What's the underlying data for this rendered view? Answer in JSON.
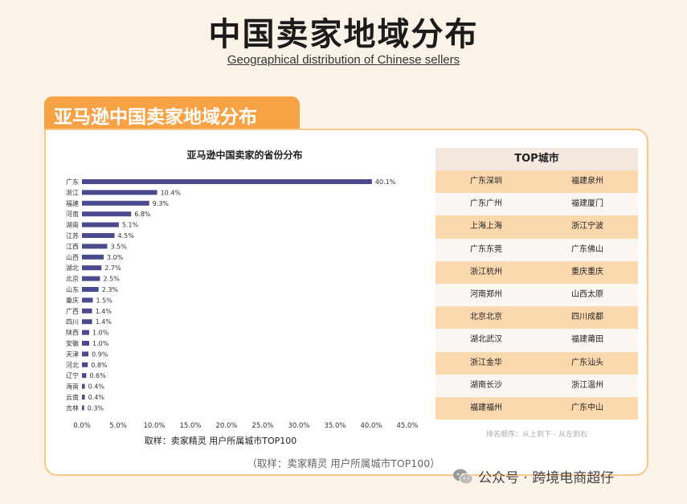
{
  "header": {
    "title": "中国卖家地域分布",
    "subtitle": "Geographical distribution of Chinese sellers"
  },
  "section": {
    "tab_label": "亚马逊中国卖家地域分布"
  },
  "chart_data": {
    "type": "bar",
    "orientation": "horizontal",
    "title": "亚马逊中国卖家的省份分布",
    "categories": [
      "广东",
      "浙江",
      "福建",
      "河南",
      "湖南",
      "江苏",
      "江西",
      "山西",
      "湖北",
      "北京",
      "山东",
      "重庆",
      "广西",
      "四川",
      "陕西",
      "安徽",
      "天津",
      "河北",
      "辽宁",
      "海南",
      "云南",
      "吉林"
    ],
    "values": [
      40.1,
      10.4,
      9.3,
      6.8,
      5.1,
      4.5,
      3.5,
      3.0,
      2.7,
      2.5,
      2.3,
      1.5,
      1.4,
      1.4,
      1.0,
      1.0,
      0.9,
      0.8,
      0.6,
      0.4,
      0.4,
      0.3
    ],
    "value_labels": [
      "40.1%",
      "10.4%",
      "9.3%",
      "6.8%",
      "5.1%",
      "4.5%",
      "3.5%",
      "3.0%",
      "2.7%",
      "2.5%",
      "2.3%",
      "1.5%",
      "1.4%",
      "1.4%",
      "1.0%",
      "1.0%",
      "0.9%",
      "0.8%",
      "0.6%",
      "0.4%",
      "0.4%",
      "0.3%"
    ],
    "x_ticks": [
      "0.0%",
      "5.0%",
      "10.0%",
      "15.0%",
      "20.0%",
      "25.0%",
      "30.0%",
      "35.0%",
      "40.0%",
      "45.0%"
    ],
    "xlim": [
      0,
      45
    ],
    "xlabel": "取样：卖家精灵 用户所属城市TOP100",
    "bar_color": "#4b4a8f",
    "grid": false
  },
  "top_cities": {
    "title": "TOP城市",
    "rows": [
      [
        "广东深圳",
        "福建泉州"
      ],
      [
        "广东广州",
        "福建厦门"
      ],
      [
        "上海上海",
        "浙江宁波"
      ],
      [
        "广东东莞",
        "广东佛山"
      ],
      [
        "浙江杭州",
        "重庆重庆"
      ],
      [
        "河南郑州",
        "山西太原"
      ],
      [
        "北京北京",
        "四川成都"
      ],
      [
        "湖北武汉",
        "福建莆田"
      ],
      [
        "浙江金华",
        "广东汕头"
      ],
      [
        "湖南长沙",
        "浙江温州"
      ],
      [
        "福建福州",
        "广东中山"
      ]
    ],
    "rank_note": "排名顺序：从上到下 - 从左到右"
  },
  "source_note": "（取样：卖家精灵 用户所属城市TOP100）",
  "footer": {
    "mark": "公众号 · 跨境电商超仔",
    "icon": "wechat-icon"
  },
  "colors": {
    "accent": "#f7a245",
    "background": "#fbf3e8",
    "row_highlight": "#fbd8ae"
  }
}
